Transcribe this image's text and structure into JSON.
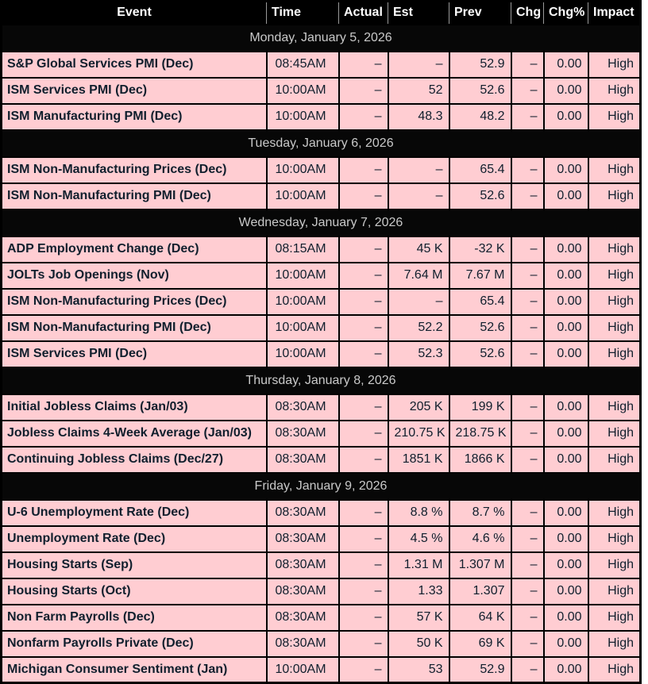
{
  "table": {
    "columns": [
      {
        "key": "event",
        "label": "Event"
      },
      {
        "key": "time",
        "label": "Time"
      },
      {
        "key": "actual",
        "label": "Actual"
      },
      {
        "key": "est",
        "label": "Est"
      },
      {
        "key": "prev",
        "label": "Prev"
      },
      {
        "key": "chg",
        "label": "Chg"
      },
      {
        "key": "chg_pct",
        "label": "Chg%"
      },
      {
        "key": "impact",
        "label": "Impact"
      }
    ],
    "sections": [
      {
        "date": "Monday, January 5, 2026",
        "rows": [
          {
            "event": "S&P Global Services PMI (Dec)",
            "time": "08:45AM",
            "actual": "–",
            "est": "–",
            "prev": "52.9",
            "chg": "–",
            "chg_pct": "0.00",
            "impact": "High"
          },
          {
            "event": "ISM Services PMI (Dec)",
            "time": "10:00AM",
            "actual": "–",
            "est": "52",
            "prev": "52.6",
            "chg": "–",
            "chg_pct": "0.00",
            "impact": "High"
          },
          {
            "event": "ISM Manufacturing PMI (Dec)",
            "time": "10:00AM",
            "actual": "–",
            "est": "48.3",
            "prev": "48.2",
            "chg": "–",
            "chg_pct": "0.00",
            "impact": "High"
          }
        ]
      },
      {
        "date": "Tuesday, January 6, 2026",
        "rows": [
          {
            "event": "ISM Non-Manufacturing Prices (Dec)",
            "time": "10:00AM",
            "actual": "–",
            "est": "–",
            "prev": "65.4",
            "chg": "–",
            "chg_pct": "0.00",
            "impact": "High"
          },
          {
            "event": "ISM Non-Manufacturing PMI (Dec)",
            "time": "10:00AM",
            "actual": "–",
            "est": "–",
            "prev": "52.6",
            "chg": "–",
            "chg_pct": "0.00",
            "impact": "High"
          }
        ]
      },
      {
        "date": "Wednesday, January 7, 2026",
        "rows": [
          {
            "event": "ADP Employment Change (Dec)",
            "time": "08:15AM",
            "actual": "–",
            "est": "45 K",
            "prev": "-32 K",
            "chg": "–",
            "chg_pct": "0.00",
            "impact": "High"
          },
          {
            "event": "JOLTs Job Openings (Nov)",
            "time": "10:00AM",
            "actual": "–",
            "est": "7.64 M",
            "prev": "7.67 M",
            "chg": "–",
            "chg_pct": "0.00",
            "impact": "High"
          },
          {
            "event": "ISM Non-Manufacturing Prices (Dec)",
            "time": "10:00AM",
            "actual": "–",
            "est": "–",
            "prev": "65.4",
            "chg": "–",
            "chg_pct": "0.00",
            "impact": "High"
          },
          {
            "event": "ISM Non-Manufacturing PMI (Dec)",
            "time": "10:00AM",
            "actual": "–",
            "est": "52.2",
            "prev": "52.6",
            "chg": "–",
            "chg_pct": "0.00",
            "impact": "High"
          },
          {
            "event": "ISM Services PMI (Dec)",
            "time": "10:00AM",
            "actual": "–",
            "est": "52.3",
            "prev": "52.6",
            "chg": "–",
            "chg_pct": "0.00",
            "impact": "High"
          }
        ]
      },
      {
        "date": "Thursday, January 8, 2026",
        "rows": [
          {
            "event": "Initial Jobless Claims (Jan/03)",
            "time": "08:30AM",
            "actual": "–",
            "est": "205 K",
            "prev": "199 K",
            "chg": "–",
            "chg_pct": "0.00",
            "impact": "High"
          },
          {
            "event": "Jobless Claims 4-Week Average (Jan/03)",
            "time": "08:30AM",
            "actual": "–",
            "est": "210.75 K",
            "prev": "218.75 K",
            "chg": "–",
            "chg_pct": "0.00",
            "impact": "High"
          },
          {
            "event": "Continuing Jobless Claims (Dec/27)",
            "time": "08:30AM",
            "actual": "–",
            "est": "1851 K",
            "prev": "1866 K",
            "chg": "–",
            "chg_pct": "0.00",
            "impact": "High"
          }
        ]
      },
      {
        "date": "Friday, January 9, 2026",
        "rows": [
          {
            "event": "U-6 Unemployment Rate (Dec)",
            "time": "08:30AM",
            "actual": "–",
            "est": "8.8 %",
            "prev": "8.7 %",
            "chg": "–",
            "chg_pct": "0.00",
            "impact": "High"
          },
          {
            "event": "Unemployment Rate (Dec)",
            "time": "08:30AM",
            "actual": "–",
            "est": "4.5 %",
            "prev": "4.6 %",
            "chg": "–",
            "chg_pct": "0.00",
            "impact": "High"
          },
          {
            "event": "Housing Starts (Sep)",
            "time": "08:30AM",
            "actual": "–",
            "est": "1.31 M",
            "prev": "1.307 M",
            "chg": "–",
            "chg_pct": "0.00",
            "impact": "High"
          },
          {
            "event": "Housing Starts (Oct)",
            "time": "08:30AM",
            "actual": "–",
            "est": "1.33",
            "prev": "1.307",
            "chg": "–",
            "chg_pct": "0.00",
            "impact": "High"
          },
          {
            "event": "Non Farm Payrolls (Dec)",
            "time": "08:30AM",
            "actual": "–",
            "est": "57 K",
            "prev": "64 K",
            "chg": "–",
            "chg_pct": "0.00",
            "impact": "High"
          },
          {
            "event": "Nonfarm Payrolls Private (Dec)",
            "time": "08:30AM",
            "actual": "–",
            "est": "50 K",
            "prev": "69 K",
            "chg": "–",
            "chg_pct": "0.00",
            "impact": "High"
          },
          {
            "event": "Michigan Consumer Sentiment (Jan)",
            "time": "10:00AM",
            "actual": "–",
            "est": "53",
            "prev": "52.9",
            "chg": "–",
            "chg_pct": "0.00",
            "impact": "High"
          }
        ]
      }
    ]
  },
  "colors": {
    "row_bg": "#ffcdd2",
    "header_bg": "#000000",
    "header_text": "#ffffff",
    "day_row_bg": "#070707",
    "day_row_text": "#c9c9c9",
    "data_text": "#101f2d",
    "border": "#000000"
  }
}
